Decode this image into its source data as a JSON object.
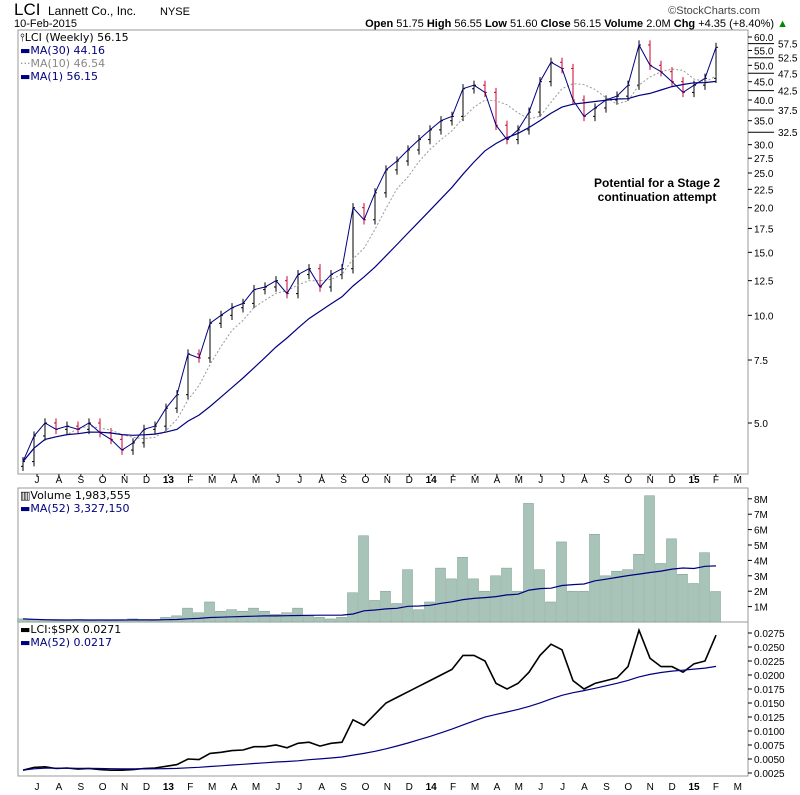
{
  "header": {
    "symbol": "LCI",
    "company": "Lannett Co., Inc.",
    "exchange": "NYSE",
    "date": "10-Feb-2015",
    "watermark": "©StockCharts.com",
    "quote": {
      "open_label": "Open",
      "open": "51.75",
      "high_label": "High",
      "high": "56.55",
      "low_label": "Low",
      "low": "51.60",
      "close_label": "Close",
      "close": "56.15",
      "volume_label": "Volume",
      "volume": "2.0M",
      "chg_label": "Chg",
      "chg": "+4.35 (+8.40%)"
    }
  },
  "legend": {
    "price": "LCI (Weekly) 56.15",
    "ma30": "MA(30) 44.16",
    "ma10": "MA(10) 46.54",
    "ma1": "MA(1) 56.15",
    "volume": "Volume 1,983,555",
    "vol_ma": "MA(52) 3,327,150",
    "ratio": "LCI:$SPX 0.0271",
    "ratio_ma": "MA(52) 0.0217"
  },
  "annotation": [
    "Potential for a Stage 2",
    "continuation attempt"
  ],
  "colors": {
    "up": "#000000",
    "down": "#cc0033",
    "ma": "#000080",
    "ma10": "#999999",
    "volume": "#a8c4b8"
  },
  "chart_data": [
    {
      "type": "line",
      "title": "LCI (Weekly)",
      "scale": "log",
      "ylim": [
        3.68,
        61
      ],
      "yticks": [
        "60.0",
        "57.5",
        "55.0",
        "52.5",
        "50.0",
        "47.5",
        "45.0",
        "42.5",
        "40.0",
        "37.5",
        "35.0",
        "32.5",
        "30.0",
        "27.5",
        "25.0",
        "22.5",
        "20.0",
        "17.5",
        "15.0",
        "12.5",
        "10.0",
        "7.5",
        "5.0"
      ],
      "x_labels": [
        "J",
        "A",
        "S",
        "O",
        "N",
        "D",
        "13",
        "F",
        "M",
        "A",
        "M",
        "J",
        "J",
        "A",
        "S",
        "O",
        "N",
        "D",
        "14",
        "F",
        "M",
        "A",
        "M",
        "J",
        "J",
        "A",
        "S",
        "O",
        "N",
        "D",
        "15",
        "F",
        "M"
      ],
      "x_range": [
        "2012-06-15",
        "2015-02-10"
      ],
      "close": [
        3.9,
        4.6,
        5.0,
        4.8,
        4.9,
        4.8,
        5.0,
        4.7,
        4.5,
        4.2,
        4.4,
        4.8,
        4.9,
        5.5,
        6.0,
        7.8,
        7.6,
        9.5,
        10.0,
        10.5,
        10.8,
        11.8,
        12.0,
        12.5,
        11.5,
        13.0,
        13.5,
        12.0,
        13.0,
        13.5,
        20.0,
        18.5,
        22.0,
        25.5,
        27.0,
        29.0,
        31.0,
        33.0,
        35.0,
        36.0,
        43.0,
        44.0,
        42.0,
        34.0,
        31.0,
        33.0,
        37.0,
        45.0,
        51.0,
        49.0,
        40.0,
        36.0,
        38.0,
        40.0,
        41.0,
        44.0,
        57.0,
        50.0,
        48.0,
        45.0,
        42.0,
        44.0,
        46.0,
        56.15
      ]
    },
    {
      "type": "bar",
      "title": "Volume",
      "unit": "M",
      "ylim": [
        0,
        8.5
      ],
      "yticks": [
        "8M",
        "7M",
        "6M",
        "5M",
        "4M",
        "3M",
        "2M",
        "1M"
      ],
      "values": [
        0.2,
        0.15,
        0.1,
        0.1,
        0.1,
        0.15,
        0.1,
        0.15,
        0.1,
        0.15,
        0.2,
        0.15,
        0.1,
        0.3,
        0.4,
        0.9,
        0.6,
        1.3,
        0.7,
        0.8,
        0.7,
        0.9,
        0.7,
        0.5,
        0.6,
        0.9,
        0.4,
        0.3,
        0.2,
        0.3,
        1.9,
        5.6,
        1.4,
        2.0,
        1.2,
        3.4,
        0.8,
        1.3,
        3.5,
        2.8,
        4.2,
        2.8,
        2.0,
        3.0,
        3.5,
        2.0,
        7.7,
        3.4,
        1.3,
        5.2,
        2.0,
        2.0,
        5.7,
        3.0,
        3.3,
        3.4,
        4.4,
        8.2,
        3.8,
        5.4,
        3.1,
        2.5,
        4.5,
        1.98
      ]
    },
    {
      "type": "line",
      "title": "LCI:$SPX",
      "ylim": [
        0.0025,
        0.0285
      ],
      "yticks": [
        "0.0275",
        "0.0250",
        "0.0225",
        "0.0200",
        "0.0175",
        "0.0150",
        "0.0125",
        "0.0100",
        "0.0075",
        "0.0050",
        "0.0025"
      ],
      "values": [
        0.003,
        0.0035,
        0.0036,
        0.0033,
        0.0034,
        0.0032,
        0.0033,
        0.0031,
        0.003,
        0.003,
        0.0031,
        0.0033,
        0.0034,
        0.0037,
        0.004,
        0.005,
        0.0049,
        0.006,
        0.0062,
        0.0065,
        0.0066,
        0.0072,
        0.0072,
        0.0075,
        0.007,
        0.0078,
        0.008,
        0.0073,
        0.0078,
        0.008,
        0.012,
        0.011,
        0.013,
        0.015,
        0.016,
        0.017,
        0.018,
        0.019,
        0.02,
        0.021,
        0.0235,
        0.0235,
        0.0225,
        0.0185,
        0.0175,
        0.0185,
        0.0205,
        0.0235,
        0.0255,
        0.0245,
        0.019,
        0.0175,
        0.0185,
        0.019,
        0.0195,
        0.0215,
        0.028,
        0.023,
        0.0215,
        0.0215,
        0.0205,
        0.022,
        0.0225,
        0.0271
      ]
    }
  ]
}
